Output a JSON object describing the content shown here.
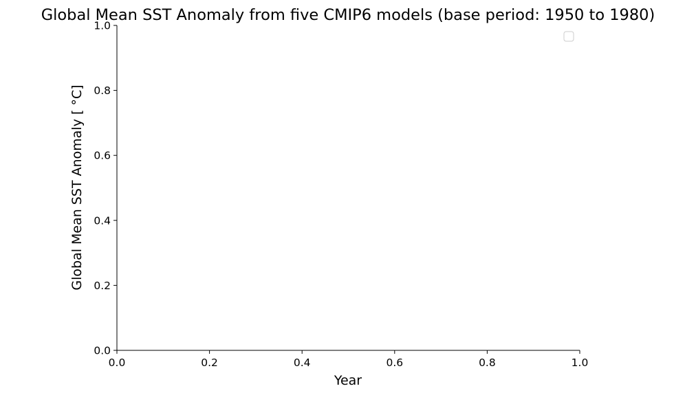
{
  "chart_data": {
    "type": "line",
    "title": "Global Mean SST Anomaly from five CMIP6 models (base period: 1950 to 1980)",
    "xlabel": "Year",
    "ylabel": "Global Mean SST Anomaly [ $^\\circ$C]",
    "ylabel_display": "Global Mean SST Anomaly [ °C]",
    "xlim": [
      0.0,
      1.0
    ],
    "ylim": [
      0.0,
      1.0
    ],
    "xticks": [
      0.0,
      0.2,
      0.4,
      0.6,
      0.8,
      1.0
    ],
    "xtick_labels": [
      "0.0",
      "0.2",
      "0.4",
      "0.6",
      "0.8",
      "1.0"
    ],
    "yticks": [
      0.0,
      0.2,
      0.4,
      0.6,
      0.8,
      1.0
    ],
    "ytick_labels": [
      "0.0",
      "0.2",
      "0.4",
      "0.6",
      "0.8",
      "1.0"
    ],
    "series": [],
    "legend": {
      "placement": "top-right",
      "entries": []
    },
    "grid": false,
    "spines": {
      "top": false,
      "right": false,
      "left": true,
      "bottom": true
    }
  }
}
